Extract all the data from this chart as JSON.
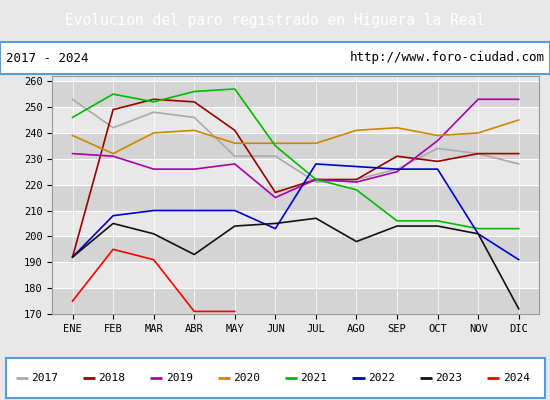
{
  "title": "Evolucion del paro registrado en Higuera la Real",
  "subtitle_left": "2017 - 2024",
  "subtitle_right": "http://www.foro-ciudad.com",
  "xlabel_months": [
    "ENE",
    "FEB",
    "MAR",
    "ABR",
    "MAY",
    "JUN",
    "JUL",
    "AGO",
    "SEP",
    "OCT",
    "NOV",
    "DIC"
  ],
  "ylim": [
    170,
    262
  ],
  "yticks": [
    170,
    180,
    190,
    200,
    210,
    220,
    230,
    240,
    250,
    260
  ],
  "series": {
    "2017": {
      "color": "#aaaaaa",
      "values": [
        253,
        242,
        248,
        246,
        231,
        231,
        221,
        222,
        226,
        234,
        232,
        228
      ]
    },
    "2018": {
      "color": "#990000",
      "values": [
        192,
        249,
        253,
        252,
        241,
        217,
        222,
        222,
        231,
        229,
        232,
        232
      ]
    },
    "2019": {
      "color": "#aa00aa",
      "values": [
        232,
        231,
        226,
        226,
        228,
        215,
        222,
        221,
        225,
        237,
        253,
        253
      ]
    },
    "2020": {
      "color": "#cc8800",
      "values": [
        239,
        232,
        240,
        241,
        236,
        236,
        236,
        241,
        242,
        239,
        240,
        245
      ]
    },
    "2021": {
      "color": "#00bb00",
      "values": [
        246,
        255,
        252,
        256,
        257,
        235,
        222,
        218,
        206,
        206,
        203,
        203
      ]
    },
    "2022": {
      "color": "#0000cc",
      "values": [
        192,
        208,
        210,
        210,
        210,
        203,
        228,
        227,
        226,
        226,
        201,
        191
      ]
    },
    "2023": {
      "color": "#111111",
      "values": [
        192,
        205,
        201,
        193,
        204,
        205,
        207,
        198,
        204,
        204,
        201,
        172
      ]
    },
    "2024": {
      "color": "#ff0000",
      "values": [
        175,
        195,
        191,
        171,
        171,
        null,
        null,
        null,
        null,
        null,
        null,
        null
      ]
    }
  },
  "background_color": "#e8e8e8",
  "title_bg_color": "#5b9bd5",
  "title_color": "white",
  "subtitle_bg_color": "white",
  "plot_bg_color": "#e8e8e8",
  "legend_bg_color": "white",
  "border_color": "#5b9bd5"
}
